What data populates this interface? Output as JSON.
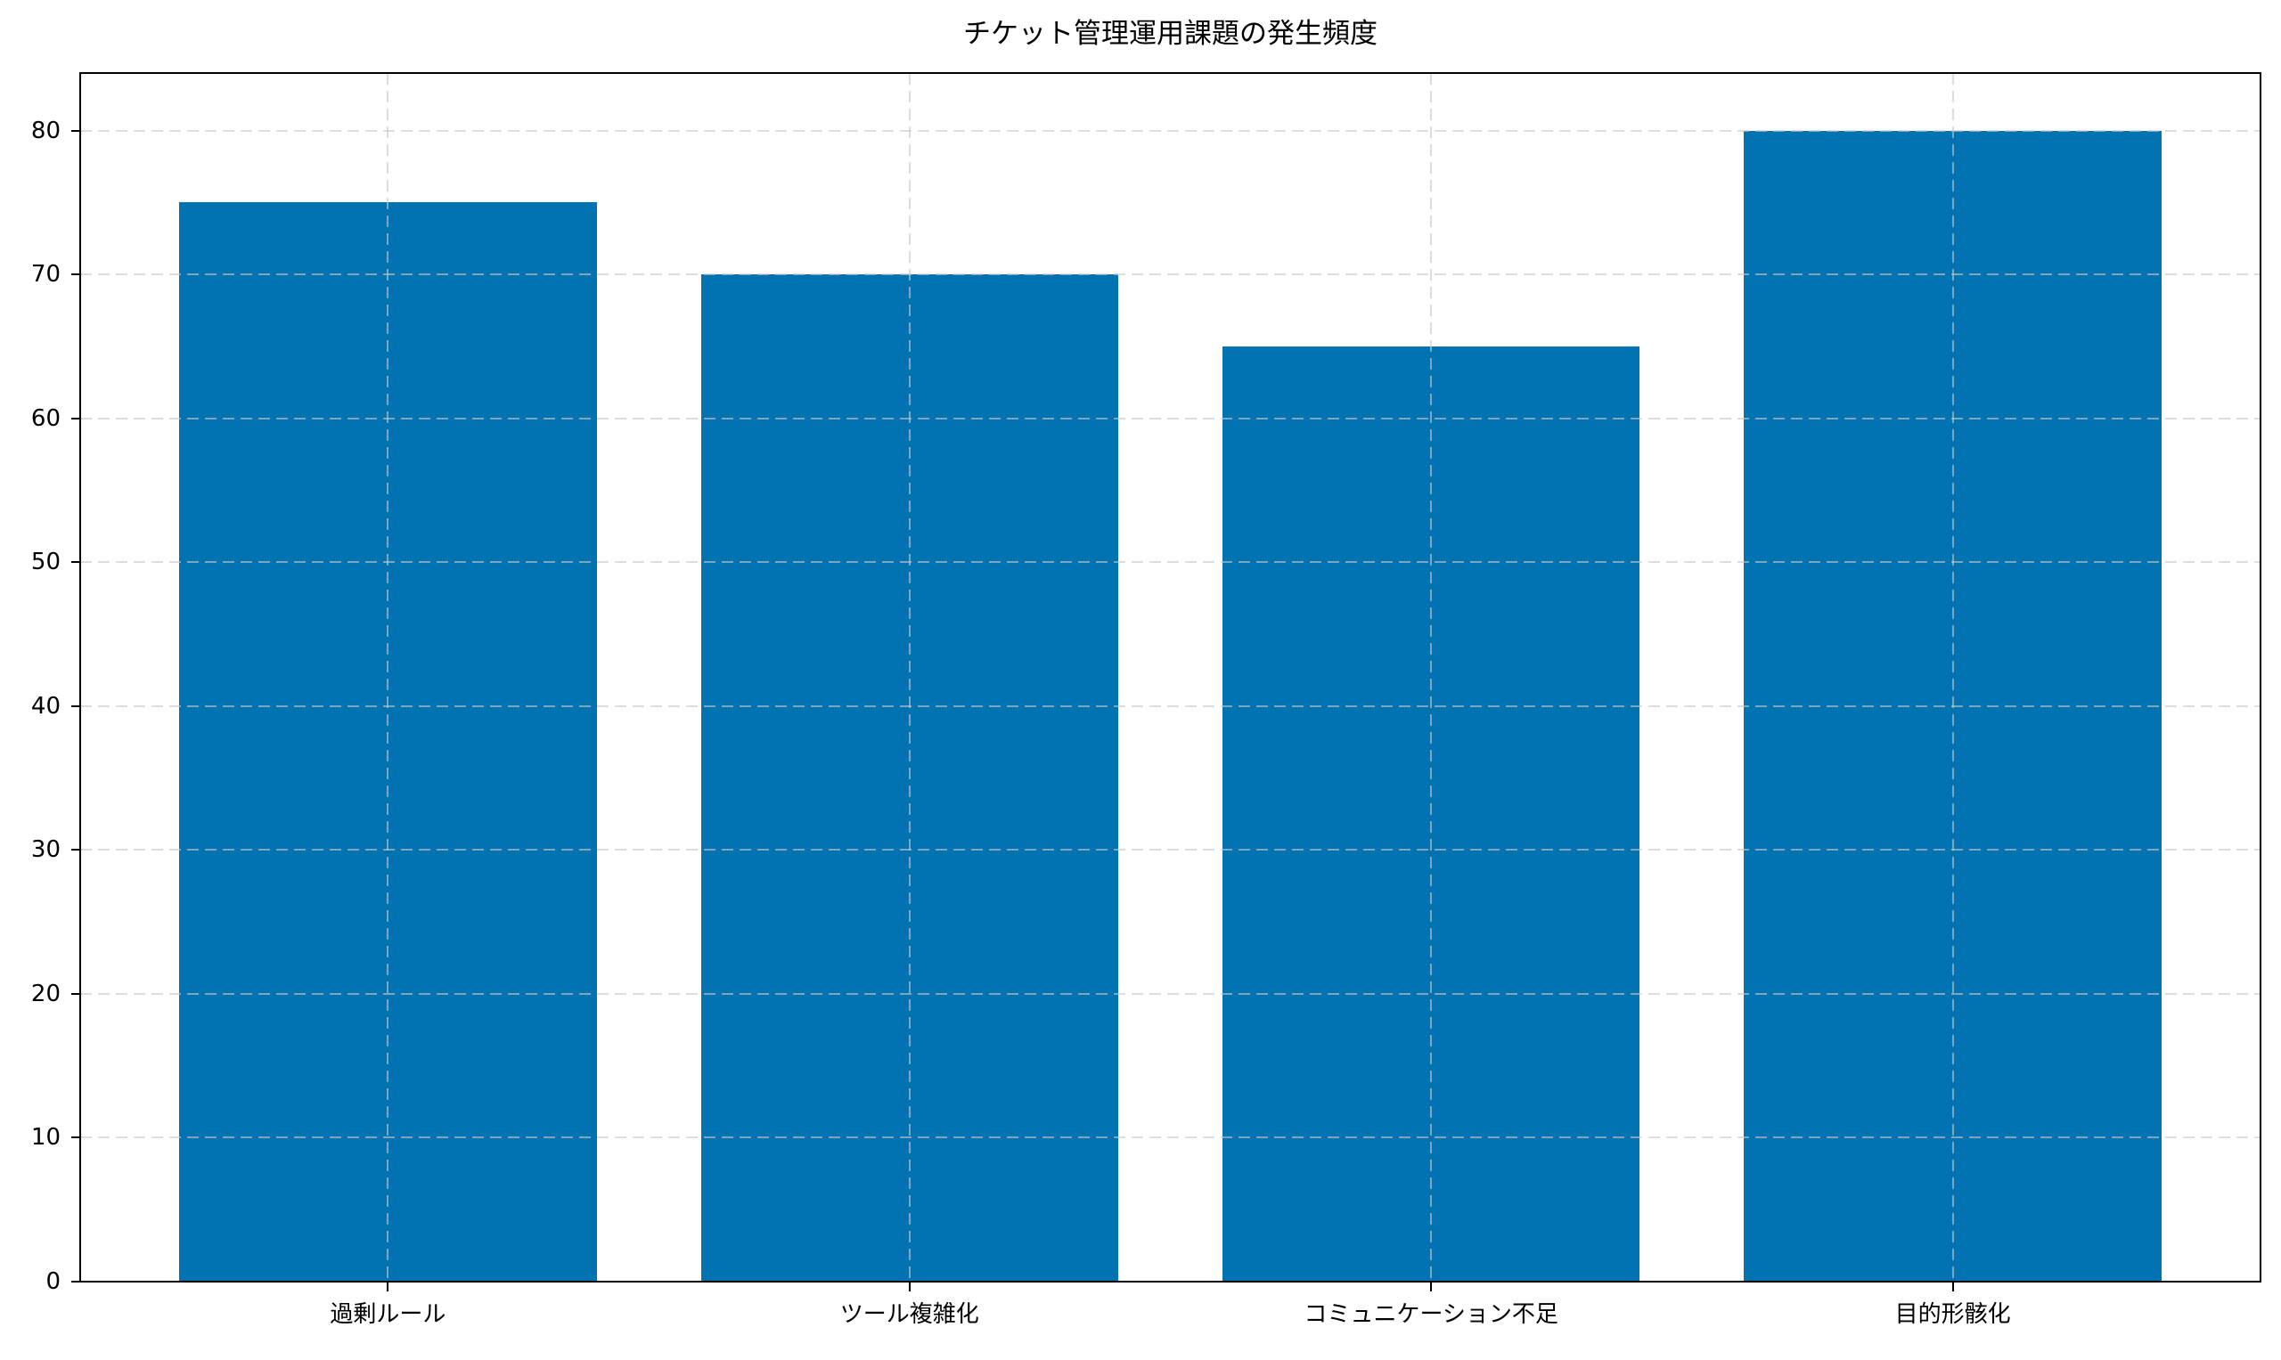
{
  "chart_data": {
    "type": "bar",
    "title": "チケット管理運用課題の発生頻度",
    "categories": [
      "過剰ルール",
      "ツール複雑化",
      "コミュニケーション不足",
      "目的形骸化"
    ],
    "values": [
      75,
      70,
      65,
      80
    ],
    "xlabel": "",
    "ylabel": "",
    "ylim": [
      0,
      84
    ],
    "yticks": [
      0,
      10,
      20,
      30,
      40,
      50,
      60,
      70,
      80
    ],
    "grid": "dashed, both axes, drawn above bars",
    "legend_position": "none",
    "bar_color": "#0173b2",
    "grid_color": "#c7c7c7",
    "axis_color": "#000000",
    "text_color": "#000000",
    "background_color": "#ffffff"
  }
}
